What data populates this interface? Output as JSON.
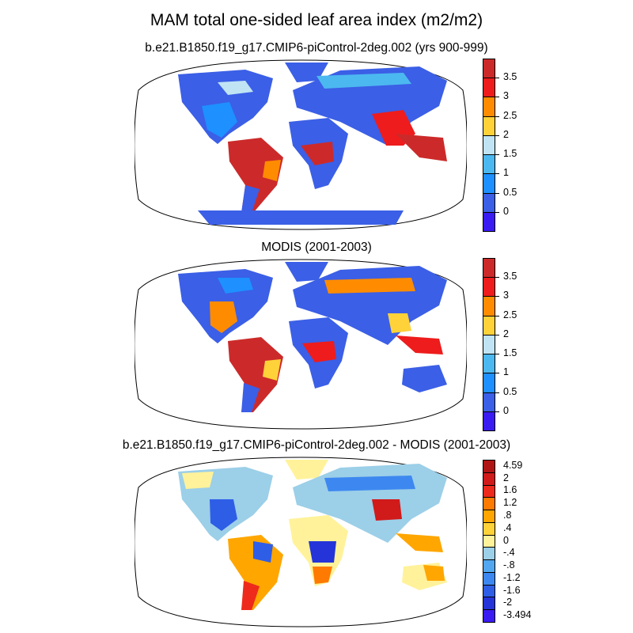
{
  "title": "MAM total one-sided leaf area index (m2/m2)",
  "panels": [
    {
      "title": "b.e21.B1850.f19_g17.CMIP6-piControl-2deg.002 (yrs 900-999)",
      "legend": {
        "colors": [
          "#3a1cf2",
          "#3b5fe6",
          "#1e90ff",
          "#4cb8f0",
          "#c0e4f4",
          "#ffd23a",
          "#ff8c00",
          "#ee1c1c",
          "#cc2a2a"
        ],
        "labels": [
          "0",
          "0.5",
          "1",
          "1.5",
          "2",
          "2.5",
          "3",
          "3.5"
        ]
      }
    },
    {
      "title": "MODIS (2001-2003)",
      "legend": {
        "colors": [
          "#3a1cf2",
          "#3b5fe6",
          "#1e90ff",
          "#4cb8f0",
          "#c0e4f4",
          "#ffd23a",
          "#ff8c00",
          "#ee1c1c",
          "#cc2a2a"
        ],
        "labels": [
          "0",
          "0.5",
          "1",
          "1.5",
          "2",
          "2.5",
          "3",
          "3.5"
        ]
      }
    },
    {
      "title": "b.e21.B1850.f19_g17.CMIP6-piControl-2deg.002 - MODIS (2001-2003)",
      "legend": {
        "colors": [
          "#3a1cf2",
          "#2434d8",
          "#2e5ee6",
          "#3d88f0",
          "#52a8f0",
          "#9ccfe8",
          "#fff29a",
          "#ffd23a",
          "#ffa600",
          "#ff7a00",
          "#ee2a1c",
          "#d11a1a",
          "#b01515"
        ],
        "labels": [
          "-3.494",
          "-2",
          "-1.6",
          "-1.2",
          "-.8",
          "-.4",
          "0",
          ".4",
          ".8",
          "1.2",
          "1.6",
          "2",
          "4.59"
        ]
      }
    }
  ]
}
